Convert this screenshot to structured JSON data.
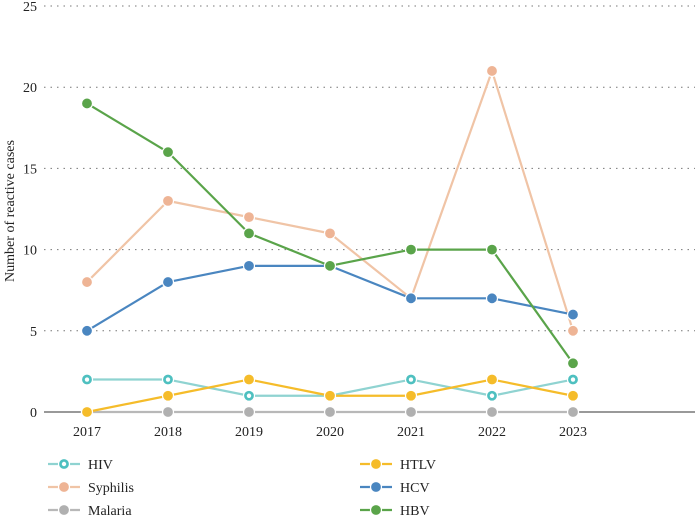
{
  "chart_data": {
    "type": "line",
    "title": "",
    "xlabel": "",
    "ylabel": "Number of reactive cases",
    "x": [
      "2017",
      "2018",
      "2019",
      "2020",
      "2021",
      "2022",
      "2023"
    ],
    "yticks": [
      "0",
      "5",
      "10",
      "15",
      "20",
      "25"
    ],
    "ylim": [
      0,
      25
    ],
    "grid": "horizontal dotted",
    "legend_position": "bottom",
    "series": [
      {
        "name": "HIV",
        "color": "#8fd3d1",
        "marker_color": "#4ec0c0",
        "values": [
          2,
          2,
          1,
          1,
          2,
          1,
          2
        ]
      },
      {
        "name": "Syphilis",
        "color": "#f0c4a6",
        "marker_color": "#eeb495",
        "values": [
          8,
          13,
          12,
          11,
          7,
          21,
          5
        ]
      },
      {
        "name": "Malaria",
        "color": "#b8b8b8",
        "marker_color": "#b0b0b0",
        "values": [
          0,
          0,
          0,
          0,
          0,
          0,
          0
        ]
      },
      {
        "name": "HTLV",
        "color": "#f5bc2a",
        "marker_color": "#f5bc2a",
        "values": [
          0,
          1,
          2,
          1,
          1,
          2,
          1
        ]
      },
      {
        "name": "HCV",
        "color": "#4a86c0",
        "marker_color": "#4a86c0",
        "values": [
          5,
          8,
          9,
          9,
          7,
          7,
          6
        ]
      },
      {
        "name": "HBV",
        "color": "#5aa44a",
        "marker_color": "#5aa44a",
        "values": [
          19,
          16,
          11,
          9,
          10,
          10,
          3
        ]
      }
    ]
  }
}
